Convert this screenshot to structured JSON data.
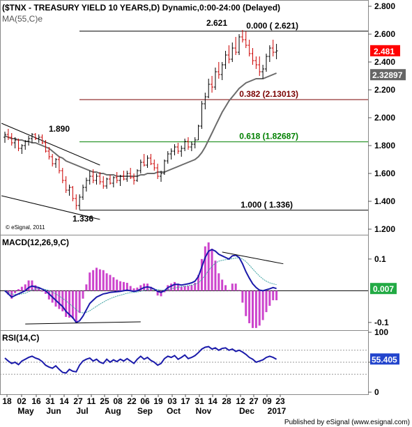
{
  "header": {
    "title": "($TNX - TREASURY YIELD 10 YEARS,D) Dynamic,0:00-24:00 (Delayed)",
    "ma_label": "MA(55,C)e",
    "copyright": "© eSignal, 2011"
  },
  "footer": {
    "publisher": "Published by eSignal (www.esignal.com)"
  },
  "colors": {
    "up": "#000000",
    "down": "#cc0000",
    "ma": "#6b6b6b",
    "fib_top": "#000000",
    "fib_382": "#7a0000",
    "fib_618": "#008000",
    "fib_bottom": "#000000",
    "macd": "#1a1aaa",
    "signal": "#3aa0a0",
    "hist": "#cc44cc",
    "rsi": "#1a1aaa",
    "price_badge": "#ff0000",
    "ma_badge": "#666666",
    "macd_badge": "#22aa44",
    "rsi_badge": "#2244cc"
  },
  "chart_data": [
    {
      "type": "candlestick",
      "panel": "price",
      "ylim": [
        1.2,
        2.85
      ],
      "y_ticks": [
        "2.800",
        "2.600",
        "2.400",
        "2.200",
        "2.000",
        "1.800",
        "1.600",
        "1.400",
        "1.200"
      ],
      "candles": [
        [
          1.86,
          1.9,
          1.82,
          1.88
        ],
        [
          1.88,
          1.92,
          1.84,
          1.86
        ],
        [
          1.86,
          1.89,
          1.8,
          1.82
        ],
        [
          1.82,
          1.86,
          1.78,
          1.84
        ],
        [
          1.84,
          1.85,
          1.76,
          1.78
        ],
        [
          1.78,
          1.81,
          1.74,
          1.8
        ],
        [
          1.8,
          1.84,
          1.77,
          1.83
        ],
        [
          1.83,
          1.87,
          1.8,
          1.85
        ],
        [
          1.85,
          1.89,
          1.82,
          1.88
        ],
        [
          1.88,
          1.89,
          1.84,
          1.85
        ],
        [
          1.85,
          1.88,
          1.82,
          1.86
        ],
        [
          1.86,
          1.88,
          1.81,
          1.82
        ],
        [
          1.82,
          1.84,
          1.75,
          1.76
        ],
        [
          1.76,
          1.79,
          1.7,
          1.72
        ],
        [
          1.72,
          1.74,
          1.65,
          1.67
        ],
        [
          1.67,
          1.71,
          1.64,
          1.7
        ],
        [
          1.7,
          1.72,
          1.6,
          1.62
        ],
        [
          1.62,
          1.64,
          1.53,
          1.55
        ],
        [
          1.55,
          1.58,
          1.46,
          1.48
        ],
        [
          1.48,
          1.52,
          1.44,
          1.5
        ],
        [
          1.5,
          1.51,
          1.4,
          1.42
        ],
        [
          1.42,
          1.45,
          1.34,
          1.37
        ],
        [
          1.37,
          1.45,
          1.34,
          1.43
        ],
        [
          1.43,
          1.52,
          1.41,
          1.5
        ],
        [
          1.5,
          1.57,
          1.47,
          1.55
        ],
        [
          1.55,
          1.62,
          1.52,
          1.58
        ],
        [
          1.58,
          1.63,
          1.53,
          1.55
        ],
        [
          1.55,
          1.6,
          1.52,
          1.58
        ],
        [
          1.58,
          1.61,
          1.52,
          1.54
        ],
        [
          1.54,
          1.58,
          1.49,
          1.51
        ],
        [
          1.51,
          1.57,
          1.49,
          1.56
        ],
        [
          1.56,
          1.59,
          1.52,
          1.53
        ],
        [
          1.53,
          1.58,
          1.5,
          1.57
        ],
        [
          1.57,
          1.61,
          1.53,
          1.55
        ],
        [
          1.55,
          1.59,
          1.51,
          1.58
        ],
        [
          1.58,
          1.62,
          1.55,
          1.56
        ],
        [
          1.56,
          1.62,
          1.54,
          1.6
        ],
        [
          1.6,
          1.64,
          1.56,
          1.57
        ],
        [
          1.57,
          1.6,
          1.52,
          1.55
        ],
        [
          1.55,
          1.63,
          1.54,
          1.62
        ],
        [
          1.62,
          1.7,
          1.6,
          1.68
        ],
        [
          1.68,
          1.74,
          1.65,
          1.66
        ],
        [
          1.66,
          1.73,
          1.64,
          1.71
        ],
        [
          1.71,
          1.74,
          1.66,
          1.67
        ],
        [
          1.67,
          1.7,
          1.62,
          1.64
        ],
        [
          1.64,
          1.67,
          1.56,
          1.58
        ],
        [
          1.58,
          1.62,
          1.54,
          1.6
        ],
        [
          1.6,
          1.7,
          1.59,
          1.69
        ],
        [
          1.69,
          1.76,
          1.67,
          1.74
        ],
        [
          1.74,
          1.78,
          1.7,
          1.76
        ],
        [
          1.76,
          1.81,
          1.73,
          1.79
        ],
        [
          1.79,
          1.82,
          1.74,
          1.76
        ],
        [
          1.76,
          1.8,
          1.72,
          1.78
        ],
        [
          1.78,
          1.85,
          1.76,
          1.83
        ],
        [
          1.83,
          1.86,
          1.77,
          1.79
        ],
        [
          1.79,
          1.83,
          1.76,
          1.81
        ],
        [
          1.81,
          1.86,
          1.78,
          1.84
        ],
        [
          1.84,
          1.95,
          1.84,
          1.94
        ],
        [
          1.94,
          2.12,
          1.92,
          2.1
        ],
        [
          2.1,
          2.18,
          2.06,
          2.15
        ],
        [
          2.15,
          2.28,
          2.14,
          2.24
        ],
        [
          2.24,
          2.3,
          2.18,
          2.22
        ],
        [
          2.22,
          2.36,
          2.2,
          2.33
        ],
        [
          2.33,
          2.4,
          2.28,
          2.31
        ],
        [
          2.31,
          2.4,
          2.27,
          2.38
        ],
        [
          2.38,
          2.48,
          2.35,
          2.45
        ],
        [
          2.45,
          2.52,
          2.39,
          2.42
        ],
        [
          2.42,
          2.54,
          2.4,
          2.5
        ],
        [
          2.5,
          2.58,
          2.45,
          2.47
        ],
        [
          2.47,
          2.6,
          2.45,
          2.58
        ],
        [
          2.58,
          2.63,
          2.54,
          2.56
        ],
        [
          2.56,
          2.62,
          2.5,
          2.52
        ],
        [
          2.52,
          2.56,
          2.44,
          2.46
        ],
        [
          2.46,
          2.5,
          2.38,
          2.41
        ],
        [
          2.41,
          2.44,
          2.35,
          2.38
        ],
        [
          2.38,
          2.44,
          2.3,
          2.33
        ],
        [
          2.33,
          2.38,
          2.28,
          2.35
        ],
        [
          2.35,
          2.46,
          2.33,
          2.44
        ],
        [
          2.44,
          2.52,
          2.4,
          2.5
        ],
        [
          2.5,
          2.56,
          2.44,
          2.47
        ],
        [
          2.47,
          2.53,
          2.42,
          2.48
        ]
      ],
      "ma_values": [
        1.87,
        1.86,
        1.85,
        1.85,
        1.84,
        1.84,
        1.83,
        1.83,
        1.82,
        1.82,
        1.81,
        1.8,
        1.79,
        1.78,
        1.76,
        1.74,
        1.72,
        1.71,
        1.69,
        1.68,
        1.67,
        1.66,
        1.65,
        1.64,
        1.63,
        1.62,
        1.61,
        1.61,
        1.6,
        1.6,
        1.59,
        1.59,
        1.59,
        1.58,
        1.58,
        1.58,
        1.58,
        1.58,
        1.58,
        1.58,
        1.59,
        1.59,
        1.6,
        1.6,
        1.6,
        1.61,
        1.61,
        1.61,
        1.62,
        1.63,
        1.64,
        1.65,
        1.66,
        1.67,
        1.68,
        1.69,
        1.7,
        1.72,
        1.75,
        1.79,
        1.84,
        1.89,
        1.94,
        1.99,
        2.04,
        2.08,
        2.12,
        2.15,
        2.18,
        2.21,
        2.23,
        2.25,
        2.26,
        2.27,
        2.28,
        2.28,
        2.28,
        2.29,
        2.3,
        2.31,
        2.32
      ],
      "fib_levels": [
        {
          "key": "top",
          "label": "0.000 ( 2.621)",
          "value": 2.621
        },
        {
          "key": "382",
          "label": "0.382 (2.13013)",
          "value": 2.13013
        },
        {
          "key": "618",
          "label": "0.618 (1.82687)",
          "value": 1.82687
        },
        {
          "key": "bottom",
          "label": "1.000 ( 1.336)",
          "value": 1.336
        }
      ],
      "annotations": [
        {
          "text": "1.890",
          "value": 1.89
        },
        {
          "text": "2.621",
          "value": 2.621
        },
        {
          "text": "1.336",
          "value": 1.336
        }
      ],
      "last_price": {
        "text": "2.481",
        "value": 2.481
      },
      "last_ma": {
        "text": "2.32897",
        "value": 2.32897
      },
      "trendlines": [
        {
          "from": [
            -1,
            1.96
          ],
          "to": [
            28,
            1.66
          ]
        },
        {
          "from": [
            -1,
            1.44
          ],
          "to": [
            28,
            1.27
          ]
        }
      ]
    },
    {
      "type": "line",
      "panel": "macd",
      "title": "MACD(12,26,9,C)",
      "ylim": [
        -0.12,
        0.17
      ],
      "y_ticks": [
        "0.1",
        "-0.1"
      ],
      "zero_line": 0,
      "macd": [
        0.0,
        -0.01,
        -0.02,
        -0.015,
        -0.01,
        -0.005,
        0.0,
        0.01,
        0.015,
        0.012,
        0.01,
        0.005,
        0.0,
        -0.01,
        -0.02,
        -0.03,
        -0.04,
        -0.05,
        -0.065,
        -0.075,
        -0.085,
        -0.1,
        -0.095,
        -0.08,
        -0.06,
        -0.04,
        -0.03,
        -0.02,
        -0.015,
        -0.01,
        -0.008,
        -0.005,
        -0.004,
        -0.003,
        -0.002,
        0.0,
        0.002,
        0.0,
        -0.002,
        0.0,
        0.005,
        0.01,
        0.012,
        0.01,
        0.005,
        -0.002,
        -0.005,
        0.0,
        0.01,
        0.015,
        0.02,
        0.02,
        0.018,
        0.02,
        0.022,
        0.025,
        0.03,
        0.045,
        0.075,
        0.105,
        0.125,
        0.13,
        0.125,
        0.115,
        0.11,
        0.105,
        0.1,
        0.11,
        0.112,
        0.105,
        0.085,
        0.06,
        0.04,
        0.022,
        0.01,
        0.002,
        0.0,
        0.003,
        0.006,
        0.01,
        0.007
      ],
      "signal": [
        0.0,
        -0.005,
        -0.01,
        -0.012,
        -0.012,
        -0.01,
        -0.008,
        -0.003,
        0.002,
        0.005,
        0.006,
        0.006,
        0.004,
        0.001,
        -0.005,
        -0.01,
        -0.017,
        -0.024,
        -0.032,
        -0.041,
        -0.05,
        -0.06,
        -0.067,
        -0.07,
        -0.068,
        -0.063,
        -0.056,
        -0.049,
        -0.042,
        -0.036,
        -0.03,
        -0.025,
        -0.021,
        -0.017,
        -0.014,
        -0.011,
        -0.008,
        -0.006,
        -0.005,
        -0.004,
        -0.002,
        0.001,
        0.003,
        0.005,
        0.005,
        0.004,
        0.002,
        0.002,
        0.003,
        0.006,
        0.009,
        0.011,
        0.013,
        0.014,
        0.016,
        0.018,
        0.02,
        0.025,
        0.035,
        0.049,
        0.064,
        0.077,
        0.087,
        0.093,
        0.096,
        0.098,
        0.099,
        0.101,
        0.103,
        0.104,
        0.1,
        0.092,
        0.081,
        0.069,
        0.057,
        0.046,
        0.037,
        0.03,
        0.025,
        0.022,
        0.019
      ],
      "last_value": {
        "text": "0.007",
        "value": 0.007
      },
      "trendlines": [
        {
          "from": [
            6,
            -0.105
          ],
          "to": [
            40,
            -0.098
          ]
        },
        {
          "from": [
            64,
            0.122
          ],
          "to": [
            82,
            0.085
          ]
        }
      ]
    },
    {
      "type": "line",
      "panel": "rsi",
      "title": "RSI(14,C)",
      "ylim": [
        0,
        100
      ],
      "y_ticks": [
        "100",
        "50",
        "0"
      ],
      "ref_lines": [
        70,
        50,
        30
      ],
      "rsi": [
        57,
        52,
        48,
        50,
        46,
        52,
        55,
        58,
        60,
        57,
        55,
        51,
        45,
        42,
        40,
        44,
        38,
        33,
        32,
        38,
        35,
        34,
        45,
        52,
        55,
        57,
        52,
        55,
        50,
        48,
        55,
        50,
        54,
        51,
        55,
        52,
        56,
        52,
        48,
        55,
        60,
        55,
        58,
        53,
        50,
        45,
        48,
        56,
        60,
        58,
        61,
        55,
        58,
        62,
        56,
        58,
        61,
        66,
        72,
        75,
        76,
        72,
        74,
        70,
        73,
        74,
        70,
        72,
        68,
        70,
        67,
        63,
        58,
        55,
        50,
        52,
        54,
        58,
        60,
        58,
        55
      ],
      "last_value": {
        "text": "55.405",
        "value": 55.405
      }
    }
  ],
  "x_axis": {
    "day_labels": [
      "18",
      "02",
      "16",
      "31",
      "14",
      "27",
      "11",
      "25",
      "08",
      "22",
      "06",
      "19",
      "03",
      "17",
      "31",
      "14",
      "28",
      "12",
      "27",
      "09",
      "23"
    ],
    "month_labels": [
      "May",
      "Jun",
      "Jul",
      "Aug",
      "Sep",
      "Oct",
      "Nov",
      "Dec",
      "2017"
    ]
  }
}
